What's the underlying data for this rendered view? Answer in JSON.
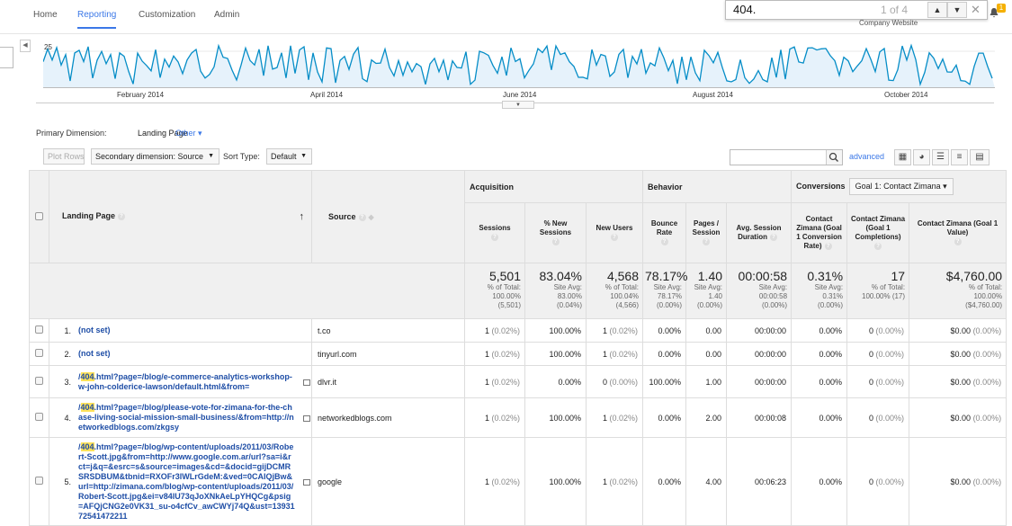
{
  "nav": {
    "items": [
      "Home",
      "Reporting",
      "Customization",
      "Admin"
    ],
    "active": "Reporting"
  },
  "find_bar": {
    "query": "404.",
    "count": "1 of 4",
    "prev_icon": "chevron-up-icon",
    "next_icon": "chevron-down-icon",
    "close_icon": "close-icon"
  },
  "account_name": "Company Website",
  "notification_count": "1",
  "chart": {
    "type": "line",
    "y_tick": "25",
    "x_ticks": [
      "February 2014",
      "April 2014",
      "June 2014",
      "August 2014",
      "October 2014"
    ],
    "color": "#058dc7"
  },
  "primary_dimension": {
    "label": "Primary Dimension:",
    "value": "Landing Page",
    "other": "Other"
  },
  "toolbar": {
    "plot_rows": "Plot Rows",
    "secondary_dimension": "Secondary dimension: Source",
    "sort_type_label": "Sort Type:",
    "sort_type_value": "Default",
    "advanced": "advanced"
  },
  "table": {
    "groups": {
      "acquisition": "Acquisition",
      "behavior": "Behavior",
      "conversions": "Conversions",
      "goal_select": "Goal 1: Contact Zimana"
    },
    "col_landing_page": "Landing Page",
    "col_source": "Source",
    "metrics": [
      "Sessions",
      "% New Sessions",
      "New Users",
      "Bounce Rate",
      "Pages / Session",
      "Avg. Session Duration",
      "Contact Zimana (Goal 1 Conversion Rate)",
      "Contact Zimana (Goal 1 Completions)",
      "Contact Zimana (Goal 1 Value)"
    ],
    "totals": [
      {
        "value": "5,501",
        "l1": "% of Total:",
        "l2": "100.00%",
        "l3": "(5,501)"
      },
      {
        "value": "83.04%",
        "l1": "Site Avg:",
        "l2": "83.00%",
        "l3": "(0.04%)"
      },
      {
        "value": "4,568",
        "l1": "% of Total:",
        "l2": "100.04%",
        "l3": "(4,566)"
      },
      {
        "value": "78.17%",
        "l1": "Site Avg:",
        "l2": "78.17%",
        "l3": "(0.00%)"
      },
      {
        "value": "1.40",
        "l1": "Site Avg:",
        "l2": "1.40",
        "l3": "(0.00%)"
      },
      {
        "value": "00:00:58",
        "l1": "Site Avg:",
        "l2": "00:00:58",
        "l3": "(0.00%)"
      },
      {
        "value": "0.31%",
        "l1": "Site Avg:",
        "l2": "0.31%",
        "l3": "(0.00%)"
      },
      {
        "value": "17",
        "l1": "% of Total:",
        "l2": "100.00% (17)",
        "l3": ""
      },
      {
        "value": "$4,760.00",
        "l1": "% of Total:",
        "l2": "100.00%",
        "l3": "($4,760.00)"
      }
    ],
    "rows": [
      {
        "num": "1.",
        "highlight": "",
        "page": "(not set)",
        "source": "t.co",
        "sessions": "1",
        "sessions_pct": "(0.02%)",
        "new_sessions": "100.00%",
        "new_users": "1",
        "new_users_pct": "(0.02%)",
        "bounce": "0.00%",
        "pages": "0.00",
        "duration": "00:00:00",
        "conv": "0.00%",
        "completions": "0",
        "completions_pct": "(0.00%)",
        "value": "$0.00",
        "value_pct": "(0.00%)"
      },
      {
        "num": "2.",
        "highlight": "",
        "page": "(not set)",
        "source": "tinyurl.com",
        "sessions": "1",
        "sessions_pct": "(0.02%)",
        "new_sessions": "100.00%",
        "new_users": "1",
        "new_users_pct": "(0.02%)",
        "bounce": "0.00%",
        "pages": "0.00",
        "duration": "00:00:00",
        "conv": "0.00%",
        "completions": "0",
        "completions_pct": "(0.00%)",
        "value": "$0.00",
        "value_pct": "(0.00%)"
      },
      {
        "num": "3.",
        "highlight": "404",
        "page": ".html?page=/blog/e-commerce-analytics-workshop-w-john-colderice-lawson/default.html&from=",
        "source": "dlvr.it",
        "sessions": "1",
        "sessions_pct": "(0.02%)",
        "new_sessions": "0.00%",
        "new_users": "0",
        "new_users_pct": "(0.00%)",
        "bounce": "100.00%",
        "pages": "1.00",
        "duration": "00:00:00",
        "conv": "0.00%",
        "completions": "0",
        "completions_pct": "(0.00%)",
        "value": "$0.00",
        "value_pct": "(0.00%)"
      },
      {
        "num": "4.",
        "highlight": "404",
        "page": ".html?page=/blog/please-vote-for-zimana-for-the-chase-living-social-mission-small-business/&from=http://networkedblogs.com/zkgsy",
        "source": "networkedblogs.com",
        "sessions": "1",
        "sessions_pct": "(0.02%)",
        "new_sessions": "100.00%",
        "new_users": "1",
        "new_users_pct": "(0.02%)",
        "bounce": "0.00%",
        "pages": "2.00",
        "duration": "00:00:08",
        "conv": "0.00%",
        "completions": "0",
        "completions_pct": "(0.00%)",
        "value": "$0.00",
        "value_pct": "(0.00%)"
      },
      {
        "num": "5.",
        "highlight": "404",
        "page": ".html?page=/blog/wp-content/uploads/2011/03/Robert-Scott.jpg&from=http://www.google.com.ar/url?sa=i&rct=j&q=&esrc=s&source=images&cd=&docid=gijDCMRSRSDBUM&tbnid=RXOFr3lWLrGdeM:&ved=0CAIQjBw&url=http://zimana.com/blog/wp-content/uploads/2011/03/Robert-Scott.jpg&ei=v84lU73qJoXNkAeLpYHQCg&psig=AFQjCNG2e0VK31_su-o4cfCv_awCWYj74Q&ust=1393172541472211",
        "source": "google",
        "sessions": "1",
        "sessions_pct": "(0.02%)",
        "new_sessions": "100.00%",
        "new_users": "1",
        "new_users_pct": "(0.02%)",
        "bounce": "0.00%",
        "pages": "4.00",
        "duration": "00:06:23",
        "conv": "0.00%",
        "completions": "0",
        "completions_pct": "(0.00%)",
        "value": "$0.00",
        "value_pct": "(0.00%)"
      }
    ]
  }
}
